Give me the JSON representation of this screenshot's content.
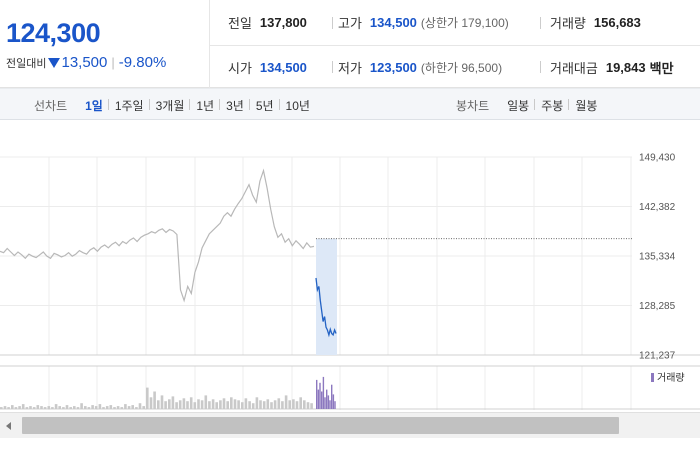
{
  "price": {
    "current": "124,300",
    "change_label": "전일대비",
    "change": "13,500",
    "rate": "-9.80%"
  },
  "stats": {
    "prev": {
      "label": "전일",
      "value": "137,800"
    },
    "high": {
      "label": "고가",
      "value": "134,500",
      "limit": "(상한가 179,100)"
    },
    "volume": {
      "label": "거래량",
      "value": "156,683"
    },
    "open": {
      "label": "시가",
      "value": "134,500"
    },
    "low": {
      "label": "저가",
      "value": "123,500",
      "limit": "(하한가 96,500)"
    },
    "amount": {
      "label": "거래대금",
      "value": "19,843",
      "unit": "백만"
    }
  },
  "toolbar": {
    "line_title": "선차트",
    "line_periods": [
      "1일",
      "1주일",
      "3개월",
      "1년",
      "3년",
      "5년",
      "10년"
    ],
    "candle_title": "봉차트",
    "candle_periods": [
      "일봉",
      "주봉",
      "월봉"
    ]
  },
  "chart_data": {
    "type": "line",
    "y_ticks": [
      "149,430",
      "142,382",
      "135,334",
      "128,285",
      "121,237"
    ],
    "ylim": [
      121237,
      149430
    ],
    "reference_price": 137800,
    "volume_legend": "거래량",
    "colors": {
      "previous_day": "#b8b8b8",
      "today": "#2463c4",
      "today_area": "#dde8f7",
      "volume_prev": "#c9c9c9",
      "volume_today": "#8c78bf"
    },
    "previous_day_prices": [
      136000,
      135800,
      136400,
      135900,
      135400,
      135900,
      135500,
      135000,
      135600,
      135300,
      135100,
      135500,
      135900,
      135300,
      135000,
      135700,
      135500,
      135200,
      135400,
      135800,
      135300,
      135600,
      136100,
      135800,
      135600,
      136200,
      136500,
      136000,
      136600,
      136900,
      136500,
      137000,
      137300,
      136800,
      137400,
      137100,
      137600,
      137900,
      137400,
      138000,
      138300,
      138500,
      138800,
      138600,
      139000,
      139200,
      138700,
      139100,
      138900,
      138400,
      130500,
      129000,
      131000,
      130000,
      133000,
      134500,
      136500,
      137500,
      138500,
      139000,
      139500,
      140000,
      141000,
      141500,
      141000,
      142000,
      142800,
      143500,
      144500,
      145500,
      144000,
      143000,
      146000,
      147500,
      145000,
      142000,
      139500,
      138000,
      138500,
      137300,
      137800,
      136800,
      137500,
      137000,
      136400,
      137200,
      136600,
      136700
    ],
    "today_prices": [
      132200,
      130500,
      131000,
      129000,
      127500,
      126000,
      126700,
      125200,
      124800,
      124100,
      124900,
      124300,
      124100,
      124800,
      124300
    ],
    "previous_day_volume": [
      2,
      3,
      2,
      4,
      2,
      3,
      5,
      2,
      3,
      2,
      4,
      3,
      2,
      3,
      2,
      5,
      3,
      2,
      4,
      2,
      3,
      2,
      6,
      3,
      2,
      4,
      3,
      5,
      2,
      3,
      4,
      2,
      3,
      2,
      5,
      3,
      4,
      2,
      6,
      3,
      22,
      12,
      18,
      9,
      14,
      8,
      10,
      13,
      7,
      9,
      11,
      8,
      12,
      7,
      10,
      9,
      14,
      8,
      10,
      7,
      9,
      11,
      8,
      12,
      10,
      9,
      7,
      11,
      8,
      6,
      12,
      9,
      8,
      10,
      7,
      9,
      11,
      8,
      14,
      9,
      10,
      8,
      12,
      9,
      7,
      6
    ],
    "today_volume": [
      30,
      20,
      27,
      18,
      33,
      12,
      20,
      14,
      9,
      25,
      15,
      8
    ]
  }
}
